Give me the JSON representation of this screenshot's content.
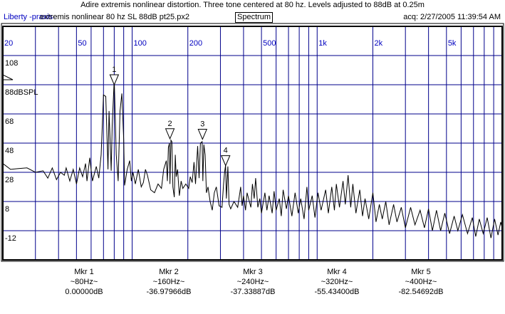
{
  "header": {
    "title": "Adire extremis nonlinear distortion. Three tone centered at 80 hz. Levels adjusted to 88dB at 0.25m",
    "brand": "Liberty -praxis-",
    "file": "extremis nonlinear 80 hz SL 88dB pt25.px2",
    "mode": "Spectrum",
    "acq": "acq: 2/27/2005 11:39:54 AM"
  },
  "colors": {
    "grid": "#00008b",
    "tick_label": "#0000c0",
    "trace": "#000000"
  },
  "chart_data": {
    "type": "line",
    "x_scale": "log",
    "xlim": [
      20,
      10000
    ],
    "ylim": [
      -32,
      128
    ],
    "grid": true,
    "x_gridlines": [
      30,
      40,
      50,
      60,
      70,
      80,
      90,
      100,
      200,
      300,
      400,
      500,
      600,
      700,
      800,
      900,
      1000,
      2000,
      3000,
      4000,
      5000,
      6000,
      7000,
      8000,
      9000
    ],
    "x_ticks": [
      {
        "v": 20,
        "label": "20"
      },
      {
        "v": 50,
        "label": "50"
      },
      {
        "v": 100,
        "label": "100"
      },
      {
        "v": 200,
        "label": "200"
      },
      {
        "v": 500,
        "label": "500"
      },
      {
        "v": 1000,
        "label": "1k"
      },
      {
        "v": 2000,
        "label": "2k"
      },
      {
        "v": 5000,
        "label": "5k"
      }
    ],
    "y_ticks": [
      {
        "v": 108,
        "label": "108"
      },
      {
        "v": 88,
        "label": "88dBSPL"
      },
      {
        "v": 68,
        "label": "68"
      },
      {
        "v": 48,
        "label": "48"
      },
      {
        "v": 28,
        "label": "28"
      },
      {
        "v": 8,
        "label": "8"
      },
      {
        "v": -12,
        "label": "-12"
      }
    ],
    "reference_level_db": 88,
    "series": [
      {
        "points": [
          [
            20,
            34
          ],
          [
            21,
            32
          ],
          [
            22,
            30
          ],
          [
            24,
            30.5
          ],
          [
            27,
            31
          ],
          [
            30,
            28
          ],
          [
            33,
            29
          ],
          [
            35,
            24
          ],
          [
            37,
            31
          ],
          [
            39,
            23
          ],
          [
            41,
            28
          ],
          [
            43,
            26
          ],
          [
            44,
            31
          ],
          [
            46,
            22
          ],
          [
            48,
            30
          ],
          [
            50,
            20
          ],
          [
            52,
            31
          ],
          [
            54,
            25
          ],
          [
            56,
            34
          ],
          [
            57,
            22
          ],
          [
            59,
            38
          ],
          [
            61,
            22
          ],
          [
            64,
            32
          ],
          [
            66,
            24
          ],
          [
            68,
            40
          ],
          [
            70,
            81
          ],
          [
            72,
            80
          ],
          [
            74,
            30
          ],
          [
            75,
            70
          ],
          [
            77,
            29
          ],
          [
            78,
            60
          ],
          [
            80,
            92
          ],
          [
            82,
            40
          ],
          [
            84,
            22
          ],
          [
            86,
            70
          ],
          [
            88,
            82
          ],
          [
            90,
            50
          ],
          [
            91,
            19
          ],
          [
            94,
            30
          ],
          [
            97,
            36
          ],
          [
            99,
            22
          ],
          [
            101,
            28
          ],
          [
            104,
            20
          ],
          [
            108,
            30
          ],
          [
            112,
            18
          ],
          [
            115,
            21
          ],
          [
            118,
            30
          ],
          [
            121,
            26
          ],
          [
            126,
            16
          ],
          [
            132,
            14
          ],
          [
            138,
            20
          ],
          [
            144,
            17
          ],
          [
            148,
            30
          ],
          [
            153,
            36
          ],
          [
            155,
            22
          ],
          [
            157,
            45
          ],
          [
            159,
            48
          ],
          [
            160,
            20
          ],
          [
            162,
            50
          ],
          [
            164,
            49
          ],
          [
            166,
            18
          ],
          [
            169,
            11
          ],
          [
            171,
            40
          ],
          [
            173,
            25
          ],
          [
            176,
            30
          ],
          [
            180,
            12
          ],
          [
            184,
            22
          ],
          [
            188,
            17
          ],
          [
            195,
            20
          ],
          [
            202,
            17
          ],
          [
            206,
            25
          ],
          [
            211,
            21
          ],
          [
            216,
            35
          ],
          [
            220,
            20
          ],
          [
            226,
            46
          ],
          [
            230,
            24
          ],
          [
            234,
            48
          ],
          [
            239,
            49
          ],
          [
            241,
            22
          ],
          [
            244,
            47
          ],
          [
            248,
            40
          ],
          [
            252,
            14
          ],
          [
            257,
            18
          ],
          [
            264,
            8
          ],
          [
            271,
            2
          ],
          [
            278,
            14
          ],
          [
            285,
            18
          ],
          [
            295,
            5
          ],
          [
            306,
            4
          ],
          [
            312,
            20
          ],
          [
            316,
            28
          ],
          [
            320,
            33
          ],
          [
            323,
            10
          ],
          [
            329,
            32
          ],
          [
            334,
            6
          ],
          [
            341,
            3
          ],
          [
            355,
            8
          ],
          [
            372,
            4
          ],
          [
            386,
            18
          ],
          [
            393,
            5
          ],
          [
            400,
            12
          ],
          [
            410,
            2
          ],
          [
            418,
            14
          ],
          [
            438,
            4
          ],
          [
            447,
            20
          ],
          [
            457,
            10
          ],
          [
            465,
            24
          ],
          [
            478,
            4
          ],
          [
            490,
            10
          ],
          [
            500,
            0
          ],
          [
            522,
            14
          ],
          [
            535,
            2
          ],
          [
            550,
            12
          ],
          [
            571,
            0
          ],
          [
            585,
            15
          ],
          [
            600,
            2
          ],
          [
            624,
            10
          ],
          [
            640,
            -2
          ],
          [
            655,
            16
          ],
          [
            682,
            3
          ],
          [
            700,
            12
          ],
          [
            730,
            -2
          ],
          [
            760,
            14
          ],
          [
            790,
            0
          ],
          [
            815,
            10
          ],
          [
            850,
            -4
          ],
          [
            880,
            18
          ],
          [
            900,
            2
          ],
          [
            940,
            12
          ],
          [
            973,
            -3
          ],
          [
            1010,
            14
          ],
          [
            1050,
            2
          ],
          [
            1112,
            16
          ],
          [
            1150,
            0
          ],
          [
            1200,
            18
          ],
          [
            1240,
            2
          ],
          [
            1270,
            20
          ],
          [
            1320,
            4
          ],
          [
            1380,
            22
          ],
          [
            1420,
            6
          ],
          [
            1470,
            26
          ],
          [
            1518,
            4
          ],
          [
            1560,
            20
          ],
          [
            1620,
            0
          ],
          [
            1700,
            16
          ],
          [
            1760,
            -2
          ],
          [
            1815,
            10
          ],
          [
            1900,
            -4
          ],
          [
            2000,
            14
          ],
          [
            2080,
            -6
          ],
          [
            2168,
            6
          ],
          [
            2250,
            -4
          ],
          [
            2350,
            8
          ],
          [
            2450,
            -8
          ],
          [
            2590,
            6
          ],
          [
            2700,
            -6
          ],
          [
            2850,
            4
          ],
          [
            3000,
            -10
          ],
          [
            3200,
            4
          ],
          [
            3380,
            -8
          ],
          [
            3600,
            2
          ],
          [
            3800,
            -10
          ],
          [
            4000,
            3
          ],
          [
            4200,
            -12
          ],
          [
            4414,
            2
          ],
          [
            4650,
            -12
          ],
          [
            4900,
            0
          ],
          [
            5200,
            -14
          ],
          [
            5500,
            -2
          ],
          [
            5760,
            -12
          ],
          [
            6100,
            -1
          ],
          [
            6500,
            -14
          ],
          [
            6900,
            -3
          ],
          [
            7200,
            -16
          ],
          [
            7520,
            -4
          ],
          [
            7900,
            -14
          ],
          [
            8300,
            -3
          ],
          [
            8700,
            -17
          ],
          [
            9100,
            -4
          ],
          [
            9500,
            -15
          ],
          [
            9820,
            -6
          ],
          [
            10000,
            -10
          ]
        ]
      }
    ],
    "markers": [
      {
        "label": "1",
        "name": "Mkr 1",
        "freq": 80,
        "freq_text": "~80Hz~",
        "value": "0.00000dB",
        "rel_db": 0
      },
      {
        "label": "2",
        "name": "Mkr 2",
        "freq": 160,
        "freq_text": "~160Hz~",
        "value": "-36.97966dB",
        "rel_db": -36.98
      },
      {
        "label": "3",
        "name": "Mkr 3",
        "freq": 240,
        "freq_text": "~240Hz~",
        "value": "-37.33887dB",
        "rel_db": -37.34
      },
      {
        "label": "4",
        "name": "Mkr 4",
        "freq": 320,
        "freq_text": "~320Hz~",
        "value": "-55.43400dB",
        "rel_db": -55.43
      },
      {
        "label": "",
        "name": "Mkr 5",
        "freq": 400,
        "freq_text": "~400Hz~",
        "value": "-82.54692dB",
        "rel_db": -82.55
      }
    ]
  }
}
